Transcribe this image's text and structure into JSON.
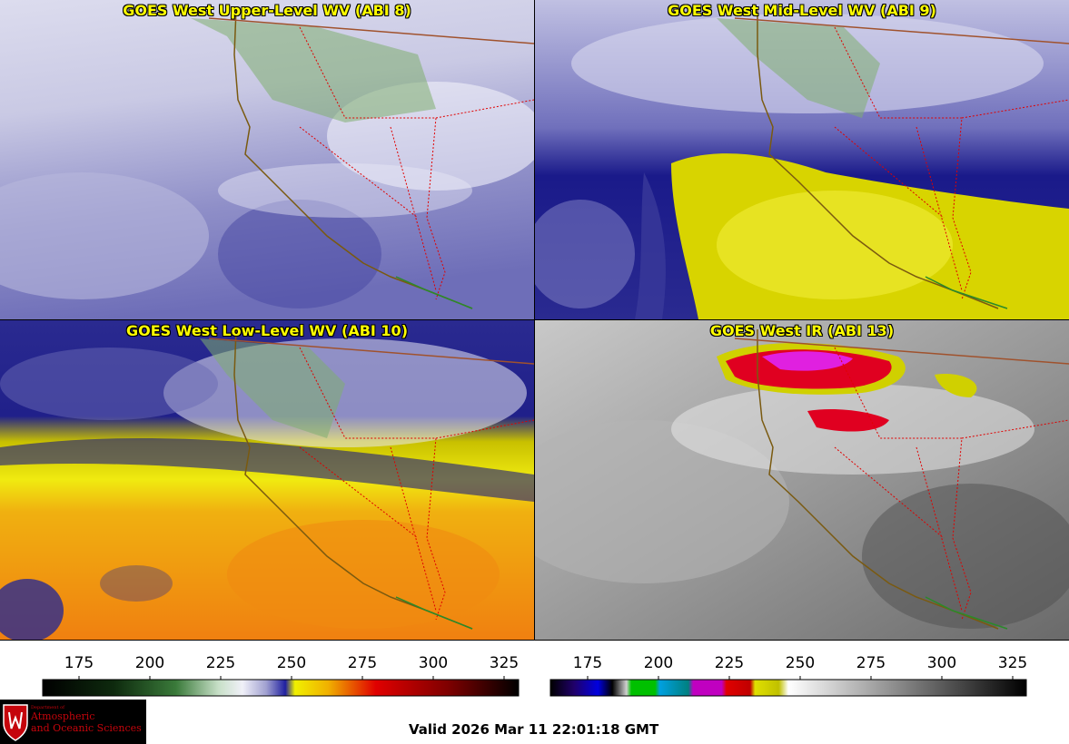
{
  "panels": [
    {
      "title": "GOES West Upper-Level WV (ABI 8)"
    },
    {
      "title": "GOES West Mid-Level WV (ABI 9)"
    },
    {
      "title": "GOES West Low-Level WV (ABI 10)"
    },
    {
      "title": "GOES West IR (ABI 13)"
    }
  ],
  "colorbars": [
    {
      "ticks": [
        "175",
        "200",
        "225",
        "250",
        "275",
        "300",
        "325"
      ]
    },
    {
      "ticks": [
        "175",
        "200",
        "225",
        "250",
        "275",
        "300",
        "325"
      ]
    }
  ],
  "logo": {
    "small": "Department of",
    "line1": "Atmospheric",
    "line2": "and Oceanic Sciences"
  },
  "valid_time": "Valid 2026 Mar 11 22:01:18 GMT"
}
